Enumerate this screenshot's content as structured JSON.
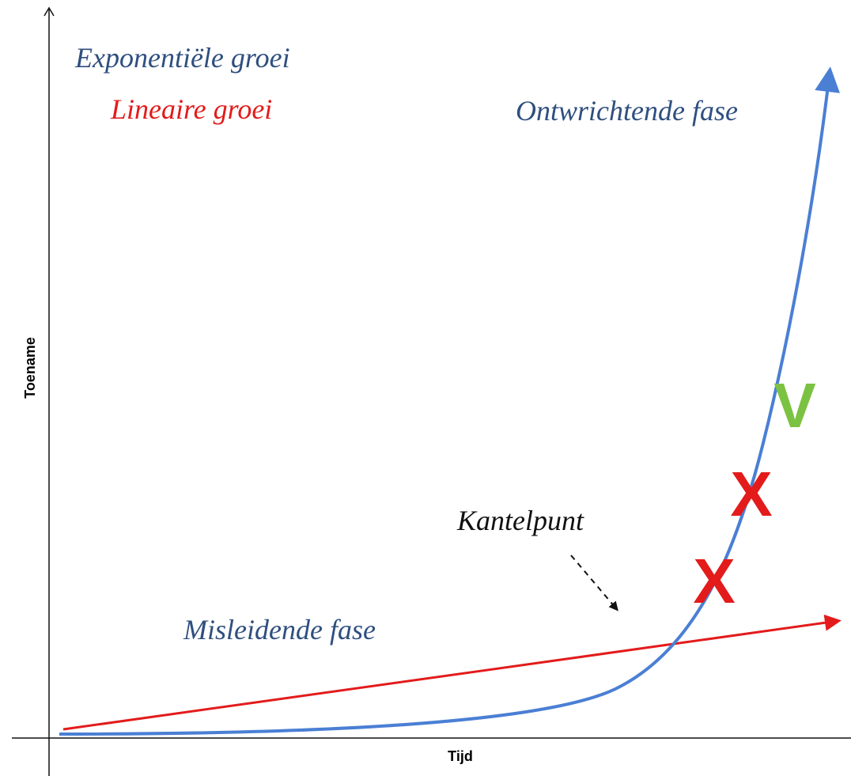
{
  "legend": {
    "exponential": "Exponentiële groei",
    "linear": "Lineaire groei"
  },
  "annotations": {
    "disruptive": "Ontwrichtende fase",
    "tipping_point": "Kantelpunt",
    "deceptive": "Misleidende fase"
  },
  "axes": {
    "y_label": "Toename",
    "x_label": "Tijd"
  },
  "marks": {
    "check": "V",
    "cross_upper": "X",
    "cross_lower": "X"
  }
}
